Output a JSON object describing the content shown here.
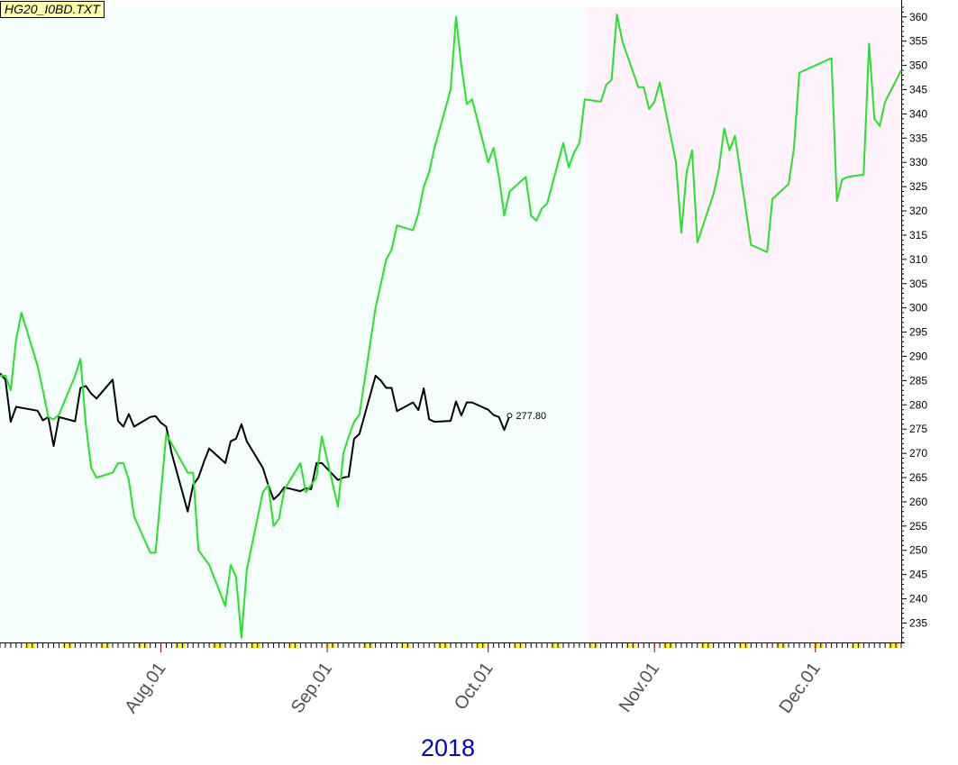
{
  "title": "HG20_I0BD.TXT",
  "year": "2018",
  "colors": {
    "history_bg": "#f5fffd",
    "forecast_bg": "#fff2fc",
    "actual_line": "#000000",
    "model_line": "#22e622",
    "tick_yellow": "#ffee00",
    "year_text": "#0000c8"
  },
  "chart_data": {
    "type": "line",
    "ylim": [
      231,
      362
    ],
    "yticks": [
      235,
      240,
      245,
      250,
      255,
      260,
      265,
      270,
      275,
      280,
      285,
      290,
      295,
      300,
      305,
      310,
      315,
      320,
      325,
      330,
      335,
      340,
      345,
      350,
      355,
      360
    ],
    "x_range": [
      "2018-07-02",
      "2018-12-17"
    ],
    "forecast_start": "2018-10-19",
    "months": [
      {
        "label": "Aug.01",
        "date": "2018-08-01"
      },
      {
        "label": "Sep.01",
        "date": "2018-09-01"
      },
      {
        "label": "Oct.01",
        "date": "2018-10-01"
      },
      {
        "label": "Nov.01",
        "date": "2018-11-01"
      },
      {
        "label": "Dec.01",
        "date": "2018-12-01"
      }
    ],
    "last_value_label": "277.80",
    "series": [
      {
        "key": "actual",
        "points": [
          [
            "2018-07-02",
            286.5
          ],
          [
            "2018-07-03",
            285.2
          ],
          [
            "2018-07-04",
            276.5
          ],
          [
            "2018-07-05",
            279.6
          ],
          [
            "2018-07-09",
            278.8
          ],
          [
            "2018-07-10",
            276.8
          ],
          [
            "2018-07-11",
            277.5
          ],
          [
            "2018-07-12",
            271.5
          ],
          [
            "2018-07-13",
            277.5
          ],
          [
            "2018-07-16",
            276.6
          ],
          [
            "2018-07-17",
            283.5
          ],
          [
            "2018-07-18",
            283.9
          ],
          [
            "2018-07-19",
            282.3
          ],
          [
            "2018-07-20",
            281.3
          ],
          [
            "2018-07-23",
            285.2
          ],
          [
            "2018-07-24",
            276.7
          ],
          [
            "2018-07-25",
            275.5
          ],
          [
            "2018-07-26",
            278.1
          ],
          [
            "2018-07-27",
            275.5
          ],
          [
            "2018-07-30",
            277.5
          ],
          [
            "2018-07-31",
            277.7
          ],
          [
            "2018-08-01",
            276.3
          ],
          [
            "2018-08-02",
            275.5
          ],
          [
            "2018-08-03",
            270.0
          ],
          [
            "2018-08-06",
            258.0
          ],
          [
            "2018-08-07",
            263.5
          ],
          [
            "2018-08-08",
            265.0
          ],
          [
            "2018-08-09",
            268.2
          ],
          [
            "2018-08-10",
            271.0
          ],
          [
            "2018-08-13",
            268.0
          ],
          [
            "2018-08-14",
            272.5
          ],
          [
            "2018-08-15",
            273.0
          ],
          [
            "2018-08-16",
            276.0
          ],
          [
            "2018-08-17",
            272.5
          ],
          [
            "2018-08-20",
            267.0
          ],
          [
            "2018-08-21",
            263.5
          ],
          [
            "2018-08-22",
            260.5
          ],
          [
            "2018-08-23",
            261.5
          ],
          [
            "2018-08-24",
            263.0
          ],
          [
            "2018-08-27",
            262.2
          ],
          [
            "2018-08-28",
            262.8
          ],
          [
            "2018-08-29",
            262.6
          ],
          [
            "2018-08-30",
            268.0
          ],
          [
            "2018-08-31",
            268.0
          ],
          [
            "2018-09-03",
            264.5
          ],
          [
            "2018-09-04",
            265.0
          ],
          [
            "2018-09-05",
            265.2
          ],
          [
            "2018-09-06",
            273.0
          ],
          [
            "2018-09-07",
            274.0
          ],
          [
            "2018-09-10",
            286.0
          ],
          [
            "2018-09-11",
            285.0
          ],
          [
            "2018-09-12",
            283.5
          ],
          [
            "2018-09-13",
            283.5
          ],
          [
            "2018-09-14",
            278.7
          ],
          [
            "2018-09-17",
            280.5
          ],
          [
            "2018-09-18",
            278.9
          ],
          [
            "2018-09-19",
            283.4
          ],
          [
            "2018-09-20",
            277.0
          ],
          [
            "2018-09-21",
            276.5
          ],
          [
            "2018-09-24",
            276.7
          ],
          [
            "2018-09-25",
            280.7
          ],
          [
            "2018-09-26",
            277.8
          ],
          [
            "2018-09-27",
            280.5
          ],
          [
            "2018-09-28",
            280.5
          ],
          [
            "2018-10-01",
            279.0
          ],
          [
            "2018-10-02",
            277.9
          ],
          [
            "2018-10-03",
            277.5
          ],
          [
            "2018-10-04",
            274.8
          ],
          [
            "2018-10-05",
            277.8
          ]
        ]
      },
      {
        "key": "model",
        "points": [
          [
            "2018-07-02",
            286.0
          ],
          [
            "2018-07-03",
            286.0
          ],
          [
            "2018-07-04",
            283.0
          ],
          [
            "2018-07-05",
            293.5
          ],
          [
            "2018-07-06",
            299.0
          ],
          [
            "2018-07-09",
            288.0
          ],
          [
            "2018-07-10",
            283.0
          ],
          [
            "2018-07-11",
            277.5
          ],
          [
            "2018-07-12",
            277.0
          ],
          [
            "2018-07-13",
            278.0
          ],
          [
            "2018-07-16",
            286.0
          ],
          [
            "2018-07-17",
            289.5
          ],
          [
            "2018-07-18",
            276.0
          ],
          [
            "2018-07-19",
            267.0
          ],
          [
            "2018-07-20",
            265.0
          ],
          [
            "2018-07-23",
            266.0
          ],
          [
            "2018-07-24",
            268.0
          ],
          [
            "2018-07-25",
            268.0
          ],
          [
            "2018-07-26",
            264.5
          ],
          [
            "2018-07-27",
            257.0
          ],
          [
            "2018-07-30",
            249.5
          ],
          [
            "2018-07-31",
            249.5
          ],
          [
            "2018-08-01",
            262.0
          ],
          [
            "2018-08-02",
            274.0
          ],
          [
            "2018-08-03",
            272.0
          ],
          [
            "2018-08-06",
            266.0
          ],
          [
            "2018-08-07",
            266.0
          ],
          [
            "2018-08-08",
            250.0
          ],
          [
            "2018-08-09",
            248.5
          ],
          [
            "2018-08-10",
            247.0
          ],
          [
            "2018-08-13",
            238.5
          ],
          [
            "2018-08-14",
            247.0
          ],
          [
            "2018-08-15",
            244.5
          ],
          [
            "2018-08-16",
            232.0
          ],
          [
            "2018-08-17",
            246.0
          ],
          [
            "2018-08-20",
            262.0
          ],
          [
            "2018-08-21",
            263.5
          ],
          [
            "2018-08-22",
            255.0
          ],
          [
            "2018-08-23",
            256.5
          ],
          [
            "2018-08-24",
            262.5
          ],
          [
            "2018-08-27",
            268.0
          ],
          [
            "2018-08-28",
            262.0
          ],
          [
            "2018-08-29",
            263.5
          ],
          [
            "2018-08-30",
            265.0
          ],
          [
            "2018-08-31",
            273.5
          ],
          [
            "2018-09-03",
            259.0
          ],
          [
            "2018-09-04",
            270.0
          ],
          [
            "2018-09-05",
            273.5
          ],
          [
            "2018-09-06",
            276.5
          ],
          [
            "2018-09-07",
            278.0
          ],
          [
            "2018-09-10",
            300.0
          ],
          [
            "2018-09-11",
            305.0
          ],
          [
            "2018-09-12",
            310.0
          ],
          [
            "2018-09-13",
            312.0
          ],
          [
            "2018-09-14",
            317.0
          ],
          [
            "2018-09-17",
            316.0
          ],
          [
            "2018-09-18",
            319.5
          ],
          [
            "2018-09-19",
            325.0
          ],
          [
            "2018-09-20",
            328.0
          ],
          [
            "2018-09-21",
            333.0
          ],
          [
            "2018-09-24",
            345.0
          ],
          [
            "2018-09-25",
            360.0
          ],
          [
            "2018-09-26",
            350.0
          ],
          [
            "2018-09-27",
            342.0
          ],
          [
            "2018-09-28",
            343.0
          ],
          [
            "2018-10-01",
            330.0
          ],
          [
            "2018-10-02",
            333.0
          ],
          [
            "2018-10-03",
            327.0
          ],
          [
            "2018-10-04",
            319.0
          ],
          [
            "2018-10-05",
            324.0
          ],
          [
            "2018-10-08",
            327.0
          ],
          [
            "2018-10-09",
            319.0
          ],
          [
            "2018-10-10",
            318.0
          ],
          [
            "2018-10-11",
            320.5
          ],
          [
            "2018-10-12",
            321.5
          ],
          [
            "2018-10-15",
            334.0
          ],
          [
            "2018-10-16",
            329.0
          ],
          [
            "2018-10-17",
            332.0
          ],
          [
            "2018-10-18",
            334.0
          ],
          [
            "2018-10-19",
            343.0
          ],
          [
            "2018-10-22",
            342.5
          ],
          [
            "2018-10-23",
            346.0
          ],
          [
            "2018-10-24",
            347.0
          ],
          [
            "2018-10-25",
            360.5
          ],
          [
            "2018-10-26",
            355.0
          ],
          [
            "2018-10-29",
            345.5
          ],
          [
            "2018-10-30",
            345.5
          ],
          [
            "2018-10-31",
            341.0
          ],
          [
            "2018-11-01",
            342.5
          ],
          [
            "2018-11-02",
            346.5
          ],
          [
            "2018-11-05",
            330.0
          ],
          [
            "2018-11-06",
            315.5
          ],
          [
            "2018-11-07",
            328.0
          ],
          [
            "2018-11-08",
            332.5
          ],
          [
            "2018-11-09",
            313.5
          ],
          [
            "2018-11-12",
            323.5
          ],
          [
            "2018-11-13",
            328.5
          ],
          [
            "2018-11-14",
            337.0
          ],
          [
            "2018-11-15",
            332.5
          ],
          [
            "2018-11-16",
            335.5
          ],
          [
            "2018-11-19",
            313.0
          ],
          [
            "2018-11-20",
            312.5
          ],
          [
            "2018-11-21",
            312.0
          ],
          [
            "2018-11-22",
            311.5
          ],
          [
            "2018-11-23",
            322.5
          ],
          [
            "2018-11-26",
            325.5
          ],
          [
            "2018-11-27",
            333.0
          ],
          [
            "2018-11-28",
            348.5
          ],
          [
            "2018-11-29",
            349.0
          ],
          [
            "2018-11-30",
            349.5
          ],
          [
            "2018-12-03",
            351.0
          ],
          [
            "2018-12-04",
            351.5
          ],
          [
            "2018-12-05",
            322.0
          ],
          [
            "2018-12-06",
            326.5
          ],
          [
            "2018-12-07",
            327.0
          ],
          [
            "2018-12-10",
            327.5
          ],
          [
            "2018-12-11",
            354.5
          ],
          [
            "2018-12-12",
            339.0
          ],
          [
            "2018-12-13",
            337.5
          ],
          [
            "2018-12-14",
            342.5
          ],
          [
            "2018-12-17",
            349.0
          ]
        ]
      }
    ]
  }
}
